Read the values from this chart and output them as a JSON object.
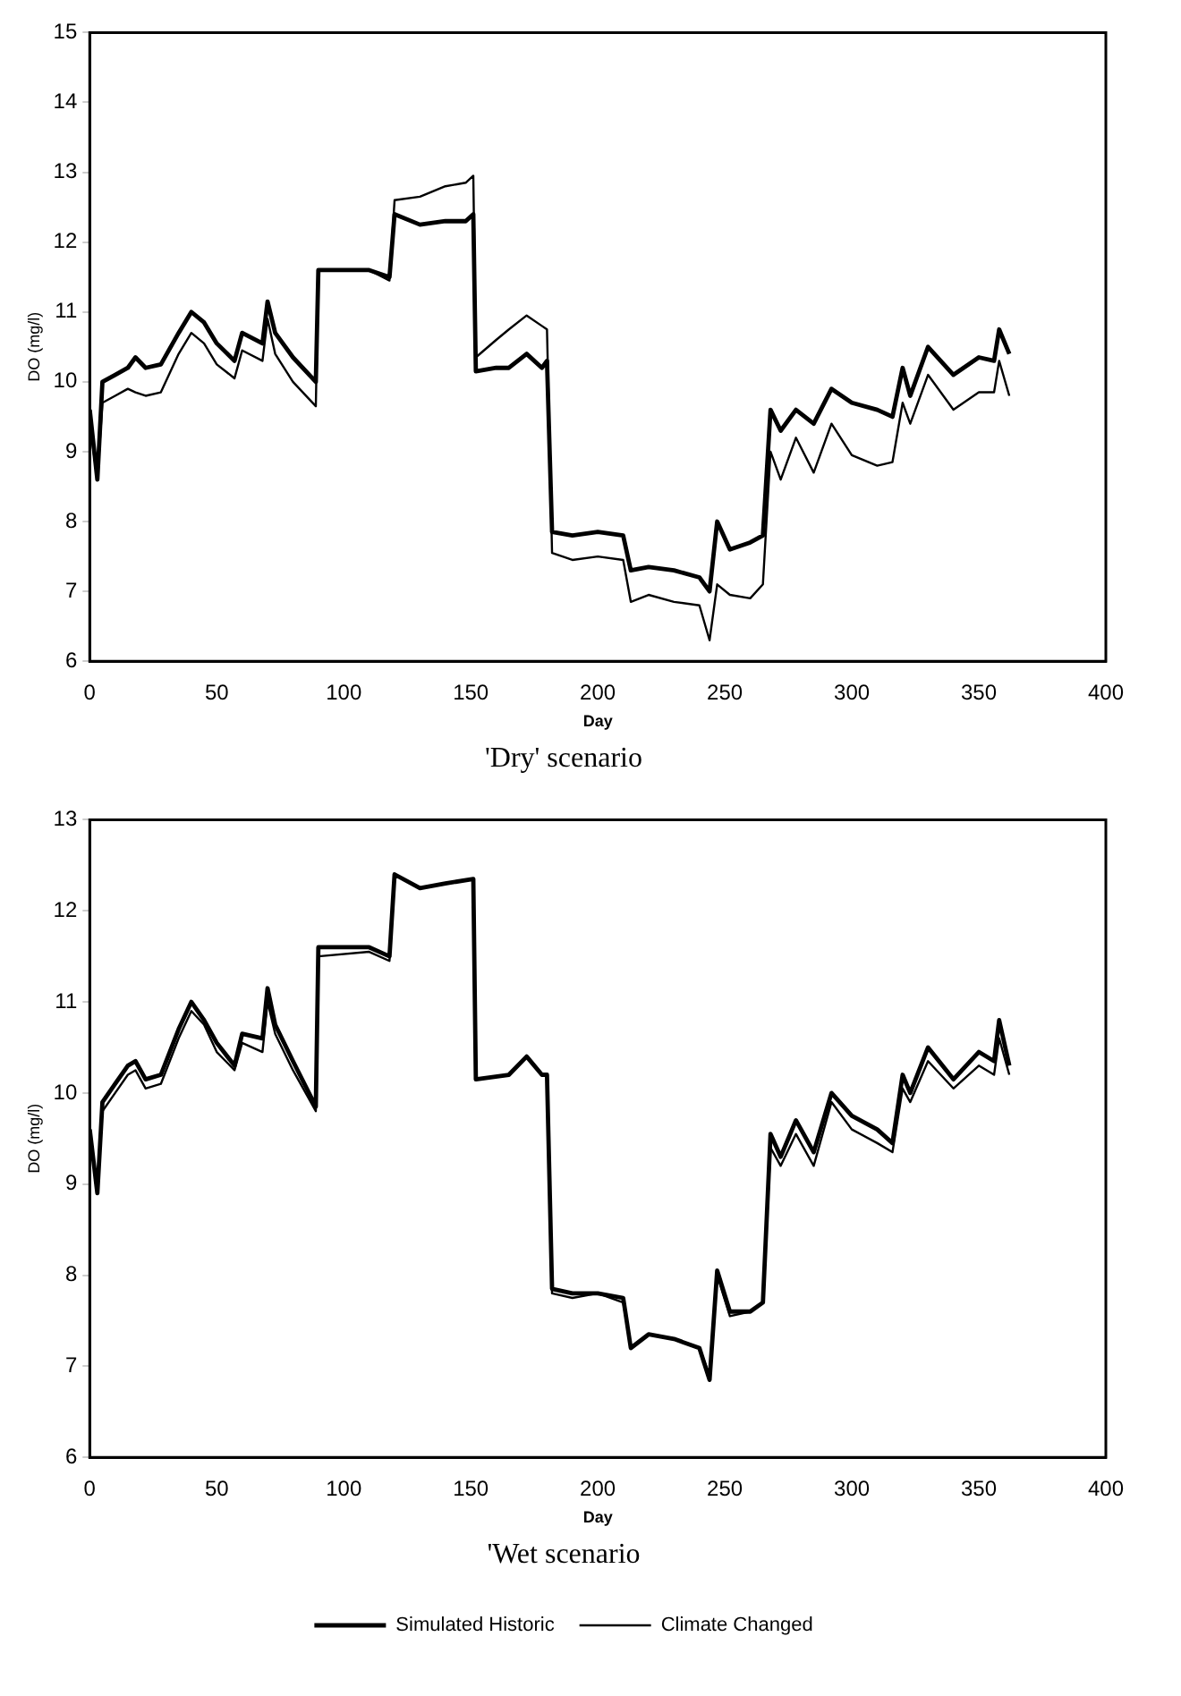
{
  "chart_data": [
    {
      "type": "line",
      "title": "'Dry' scenario",
      "xlabel": "Day",
      "ylabel": "DO (mg/l)",
      "xlim": [
        0,
        400
      ],
      "xticks": [
        0,
        50,
        100,
        150,
        200,
        250,
        300,
        350,
        400
      ],
      "ylim": [
        6,
        15
      ],
      "yticks": [
        6,
        7,
        8,
        9,
        10,
        11,
        12,
        13,
        14,
        15
      ],
      "grid": false,
      "legend": false,
      "marker": "none",
      "x": [
        0,
        3,
        5,
        10,
        15,
        18,
        22,
        28,
        35,
        40,
        45,
        50,
        57,
        60,
        68,
        70,
        73,
        80,
        89,
        90,
        110,
        118,
        120,
        130,
        140,
        148,
        151,
        152,
        160,
        165,
        172,
        178,
        180,
        182,
        190,
        200,
        210,
        213,
        220,
        230,
        240,
        244,
        247,
        252,
        260,
        265,
        268,
        272,
        278,
        285,
        292,
        300,
        310,
        316,
        320,
        323,
        330,
        340,
        350,
        356,
        358,
        362
      ],
      "series": [
        {
          "color": "#000000",
          "values": [
            9.6,
            8.6,
            10.0,
            10.1,
            10.2,
            10.35,
            10.2,
            10.25,
            10.7,
            11.0,
            10.85,
            10.55,
            10.3,
            10.7,
            10.55,
            11.15,
            10.7,
            10.35,
            10.0,
            11.6,
            11.6,
            11.5,
            12.4,
            12.25,
            12.3,
            12.3,
            12.4,
            10.15,
            10.2,
            10.2,
            10.4,
            10.2,
            10.3,
            7.85,
            7.8,
            7.85,
            7.8,
            7.3,
            7.35,
            7.3,
            7.2,
            7.0,
            8.0,
            7.6,
            7.7,
            7.8,
            9.6,
            9.3,
            9.6,
            9.4,
            9.9,
            9.7,
            9.6,
            9.5,
            10.2,
            9.8,
            10.5,
            10.1,
            10.35,
            10.3,
            10.75,
            10.4
          ]
        },
        {
          "color": "#000000",
          "values": [
            9.4,
            8.6,
            9.7,
            9.8,
            9.9,
            9.85,
            9.8,
            9.85,
            10.4,
            10.7,
            10.55,
            10.25,
            10.05,
            10.45,
            10.3,
            10.9,
            10.4,
            10.0,
            9.65,
            11.6,
            11.6,
            11.45,
            12.6,
            12.65,
            12.8,
            12.85,
            12.95,
            10.35,
            10.6,
            10.75,
            10.95,
            10.8,
            10.75,
            7.55,
            7.45,
            7.5,
            7.45,
            6.85,
            6.95,
            6.85,
            6.8,
            6.3,
            7.1,
            6.95,
            6.9,
            7.1,
            9.0,
            8.6,
            9.2,
            8.7,
            9.4,
            8.95,
            8.8,
            8.85,
            9.7,
            9.4,
            10.1,
            9.6,
            9.85,
            9.85,
            10.3,
            9.8
          ]
        }
      ]
    },
    {
      "type": "line",
      "title": "'Wet scenario",
      "xlabel": "Day",
      "ylabel": "DO (mg/l)",
      "xlim": [
        0,
        400
      ],
      "xticks": [
        0,
        50,
        100,
        150,
        200,
        250,
        300,
        350,
        400
      ],
      "ylim": [
        6,
        13
      ],
      "yticks": [
        6,
        7,
        8,
        9,
        10,
        11,
        12,
        13
      ],
      "grid": false,
      "legend": "bottom",
      "marker": "none",
      "x": [
        0,
        3,
        5,
        10,
        15,
        18,
        22,
        28,
        35,
        40,
        45,
        50,
        57,
        60,
        68,
        70,
        73,
        80,
        89,
        90,
        110,
        118,
        120,
        130,
        140,
        151,
        152,
        165,
        172,
        178,
        180,
        182,
        190,
        200,
        210,
        213,
        220,
        230,
        240,
        244,
        247,
        252,
        260,
        265,
        268,
        272,
        278,
        285,
        292,
        300,
        310,
        316,
        320,
        323,
        330,
        340,
        350,
        356,
        358,
        362
      ],
      "series": [
        {
          "name": "Simulated Historic",
          "color": "#000000",
          "values": [
            9.6,
            8.9,
            9.9,
            10.1,
            10.3,
            10.35,
            10.15,
            10.2,
            10.7,
            11.0,
            10.8,
            10.55,
            10.3,
            10.65,
            10.6,
            11.15,
            10.75,
            10.35,
            9.85,
            11.6,
            11.6,
            11.5,
            12.4,
            12.25,
            12.3,
            12.35,
            10.15,
            10.2,
            10.4,
            10.2,
            10.2,
            7.85,
            7.8,
            7.8,
            7.75,
            7.2,
            7.35,
            7.3,
            7.2,
            6.85,
            8.05,
            7.6,
            7.6,
            7.7,
            9.55,
            9.3,
            9.7,
            9.35,
            10.0,
            9.75,
            9.6,
            9.45,
            10.2,
            10.0,
            10.5,
            10.15,
            10.45,
            10.35,
            10.8,
            10.3
          ]
        },
        {
          "name": "Climate Changed",
          "color": "#000000",
          "values": [
            9.5,
            9.0,
            9.8,
            10.0,
            10.2,
            10.25,
            10.05,
            10.1,
            10.6,
            10.9,
            10.75,
            10.45,
            10.25,
            10.55,
            10.45,
            11.0,
            10.65,
            10.25,
            9.8,
            11.5,
            11.55,
            11.45,
            12.4,
            12.25,
            12.3,
            12.35,
            10.15,
            10.2,
            10.4,
            10.2,
            10.2,
            7.8,
            7.75,
            7.8,
            7.7,
            7.2,
            7.35,
            7.3,
            7.2,
            6.9,
            8.0,
            7.55,
            7.6,
            7.7,
            9.4,
            9.2,
            9.55,
            9.2,
            9.9,
            9.6,
            9.45,
            9.35,
            10.05,
            9.9,
            10.35,
            10.05,
            10.3,
            10.2,
            10.6,
            10.2
          ]
        }
      ]
    }
  ]
}
